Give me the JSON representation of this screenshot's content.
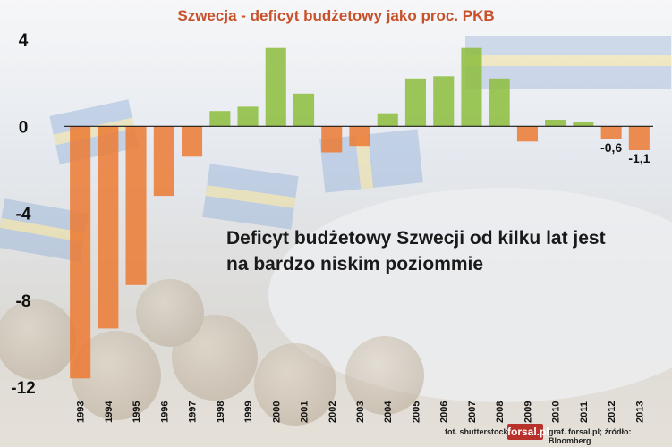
{
  "chart_data": {
    "type": "bar",
    "title": "Szwecja - deficyt budżetowy jako proc. PKB",
    "categories": [
      "1993",
      "1994",
      "1995",
      "1996",
      "1997",
      "1998",
      "1999",
      "2000",
      "2001",
      "2002",
      "2003",
      "2004",
      "2005",
      "2006",
      "2007",
      "2008",
      "2009",
      "2010",
      "2011",
      "2012",
      "2013"
    ],
    "values": [
      -11.6,
      -9.3,
      -7.3,
      -3.2,
      -1.4,
      0.7,
      0.9,
      3.6,
      1.5,
      -1.2,
      -0.9,
      0.6,
      2.2,
      2.3,
      3.6,
      2.2,
      -0.7,
      0.3,
      0.2,
      -0.6,
      -1.1
    ],
    "data_labels": [
      {
        "category": "2012",
        "text": "-0,6"
      },
      {
        "category": "2013",
        "text": "-1,1"
      }
    ],
    "ylim": [
      -12,
      4
    ],
    "yticks": [
      4,
      0,
      -4,
      -8,
      -12
    ],
    "ytick_labels": [
      "4",
      "0",
      "-4",
      "-8",
      "-12"
    ],
    "xlabel": "",
    "ylabel": "",
    "positive_color": "#8cbd3c",
    "negative_color": "#ec7a32",
    "grid": false,
    "legend": "none"
  },
  "annotation": {
    "line1": "Deficyt budżetowy Szwecji od kilku lat jest",
    "line2": "na bardzo niskim poziommie"
  },
  "credits": {
    "photo": "fot. shutterstock",
    "logo": "forsal.pl",
    "source": "graf. forsal.pl;  źródło: Bloomberg"
  }
}
